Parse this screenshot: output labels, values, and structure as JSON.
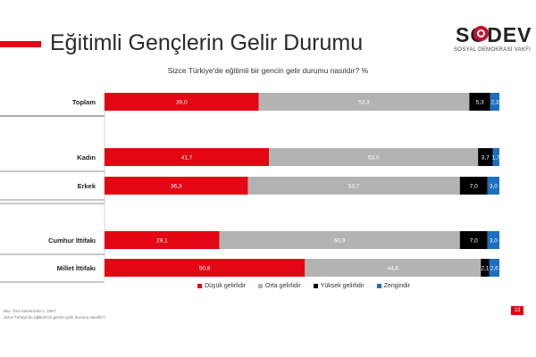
{
  "header": {
    "title": "Eğitimli Gençlerin Gelir Durumu",
    "question": "Sizce Türkiye'de eğitimli bir gencin gelir durumu nasıldır? %"
  },
  "logo": {
    "name": "SODEV",
    "subtitle": "SOSYAL DEMOKRASİ VAKFI"
  },
  "colors": {
    "dusuk": "#e30613",
    "orta": "#b3b3b3",
    "yuksek": "#000000",
    "zengin": "#1a6fc0",
    "accent": "#e30613"
  },
  "chart_data": {
    "type": "bar",
    "orientation": "horizontal",
    "stacked": true,
    "categories": [
      "Toplam",
      "Kadın",
      "Erkek",
      "Cumhur İttifakı",
      "Millet İttifakı"
    ],
    "series": [
      {
        "name": "Düşük gelirlidir",
        "values": [
          39.0,
          41.7,
          36.3,
          29.1,
          50.8
        ]
      },
      {
        "name": "Orta gelirlidir",
        "values": [
          53.3,
          53.0,
          53.7,
          60.9,
          44.6
        ]
      },
      {
        "name": "Yüksek gelirlidir",
        "values": [
          5.3,
          3.7,
          7.0,
          7.0,
          2.1
        ]
      },
      {
        "name": "Zengindir",
        "values": [
          2.3,
          1.7,
          3.0,
          3.0,
          2.6
        ]
      }
    ],
    "value_labels": [
      [
        "39,0",
        "53,3",
        "5,3",
        "2,3"
      ],
      [
        "41,7",
        "53,0",
        "3,7",
        "1,7"
      ],
      [
        "36,3",
        "53,7",
        "7,0",
        "3,0"
      ],
      [
        "29,1",
        "60,9",
        "7,0",
        "3,0"
      ],
      [
        "50,8",
        "44,6",
        "2,1",
        "2,6"
      ]
    ],
    "legend_position": "bottom",
    "grid": false
  },
  "footer": {
    "note1": "Baz: Tüm katılımcılar n: 2067",
    "note2": "Sizce Türkiye'de eğitimli bir gencin gelir durumu nasıldır?",
    "page_number": "13"
  }
}
